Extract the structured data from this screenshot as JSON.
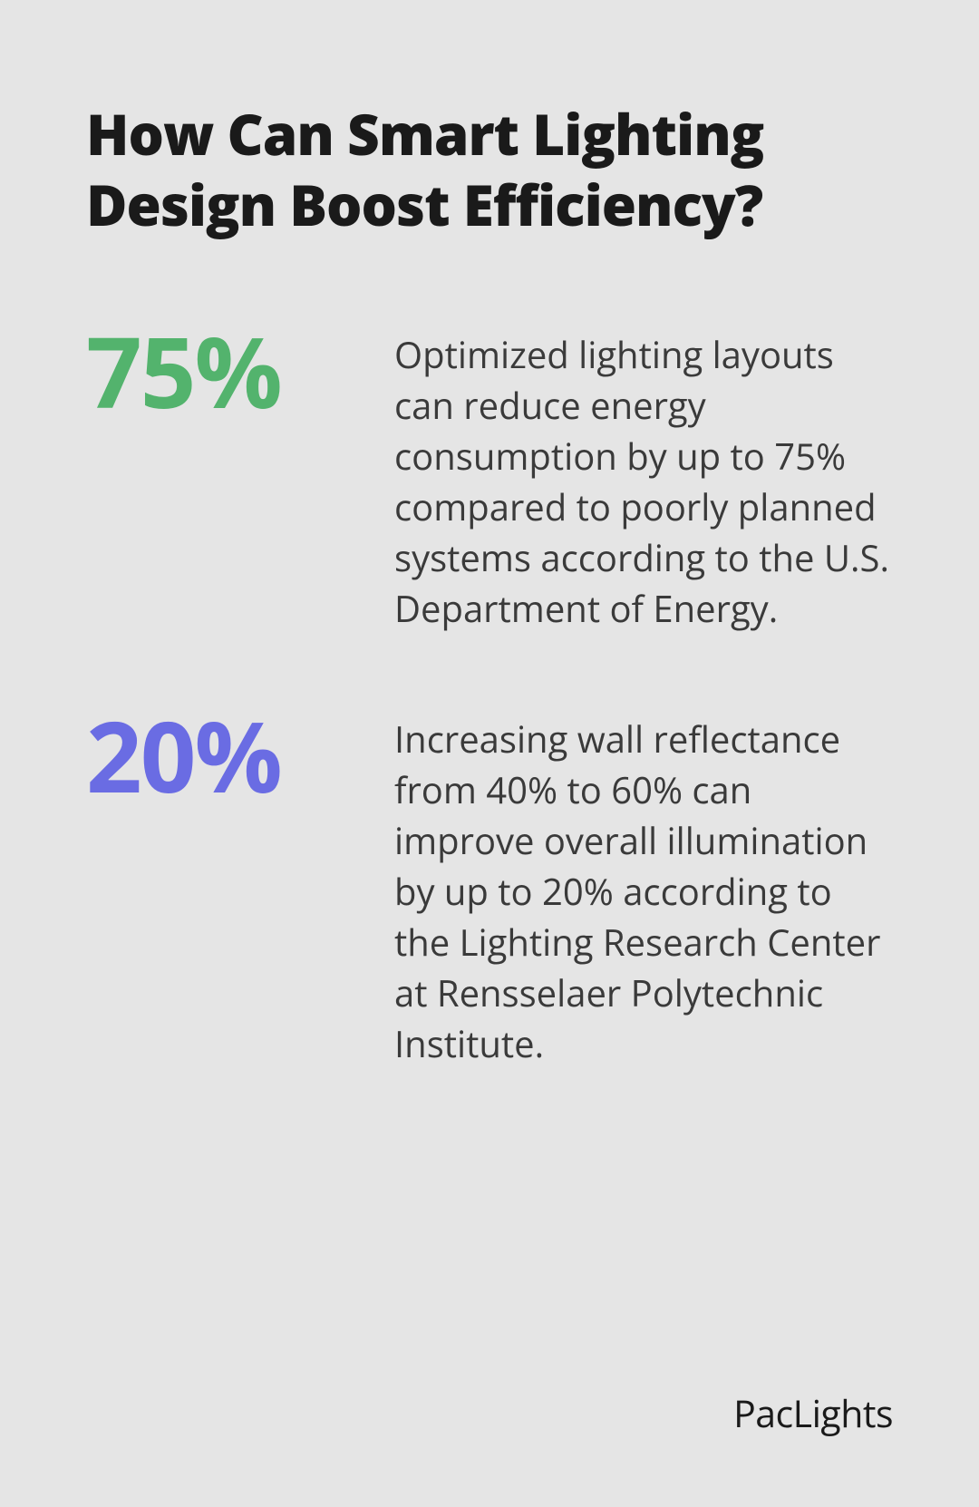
{
  "title": "How Can Smart Lighting Design Boost Efficiency?",
  "stats": [
    {
      "number": "75%",
      "color": "#53b36d",
      "text": "Optimized lighting layouts can reduce energy consumption by up to 75% compared to poorly planned systems according to the U.S. Department of Energy."
    },
    {
      "number": "20%",
      "color": "#6a6ce3",
      "text": "Increasing wall reflectance from 40% to 60% can improve overall illumination by up to 20% according to the Lighting Research Center at Rensselaer Polytechnic Institute."
    }
  ],
  "logo": "PacLights",
  "style": {
    "background_color": "#e5e5e5",
    "title_fontsize": 62,
    "title_fontweight": 800,
    "title_color": "#1a1a1a",
    "stat_number_fontsize": 108,
    "stat_number_fontweight": 700,
    "stat_text_fontsize": 40,
    "stat_text_color": "#3a3a3a",
    "logo_fontsize": 41,
    "logo_color": "#1a1a1a"
  }
}
